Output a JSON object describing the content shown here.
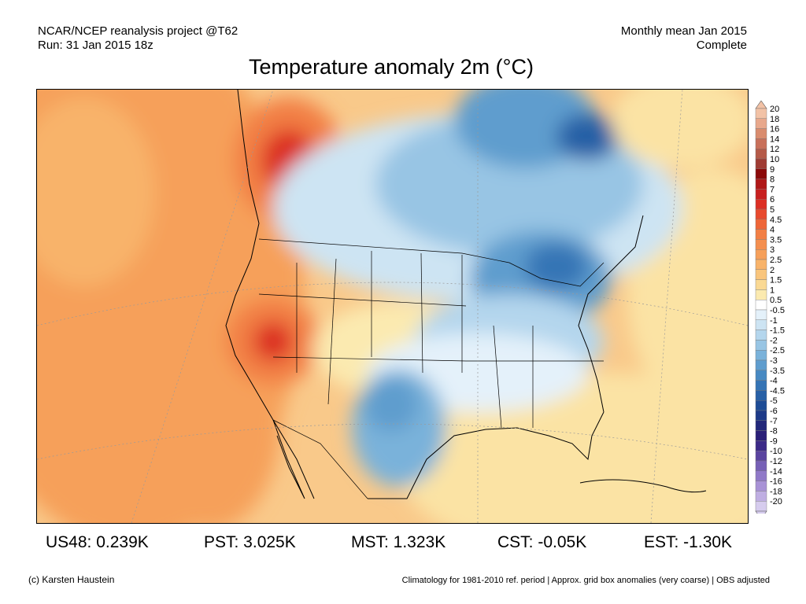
{
  "header": {
    "source_line1": "NCAR/NCEP reanalysis project @T62",
    "source_line2": "Run: 31 Jan 2015 18z",
    "period_line1": "Monthly mean Jan 2015",
    "period_line2": "Complete"
  },
  "title": "Temperature anomaly 2m (°C)",
  "colorbar": {
    "labels": [
      "20",
      "18",
      "16",
      "14",
      "12",
      "10",
      "9",
      "8",
      "7",
      "6",
      "5",
      "4.5",
      "4",
      "3.5",
      "3",
      "2.5",
      "2",
      "1.5",
      "1",
      "0.5",
      "-0.5",
      "-1",
      "-1.5",
      "-2",
      "-2.5",
      "-3",
      "-3.5",
      "-4",
      "-4.5",
      "-5",
      "-6",
      "-7",
      "-8",
      "-9",
      "-10",
      "-12",
      "-14",
      "-16",
      "-18",
      "-20"
    ],
    "colors": [
      "#f2c2a6",
      "#e8a88c",
      "#d98c6e",
      "#c8705a",
      "#b55a48",
      "#a03c34",
      "#8c0a0a",
      "#b01818",
      "#c82020",
      "#dc2f24",
      "#e84a2e",
      "#ee6638",
      "#f27f45",
      "#f48f4f",
      "#f6a05a",
      "#f8b36a",
      "#f9c57d",
      "#fad994",
      "#fbeab0",
      "#ffffff",
      "#e4f1fa",
      "#cde4f3",
      "#b4d6ed",
      "#98c5e4",
      "#7ab2da",
      "#5f9dce",
      "#4789c2",
      "#3574b5",
      "#2860a6",
      "#1e4c96",
      "#1d3a88",
      "#22287a",
      "#2a1f78",
      "#3c2a88",
      "#5a44a0",
      "#7660b6",
      "#9079c8",
      "#a892d6",
      "#bfaee2",
      "#d6ccee"
    ]
  },
  "stats": [
    {
      "label": "US48: 0.239K"
    },
    {
      "label": "PST: 3.025K"
    },
    {
      "label": "MST: 1.323K"
    },
    {
      "label": "CST: -0.05K"
    },
    {
      "label": "EST: -1.30K"
    }
  ],
  "footer": {
    "credit": "(c) Karsten Haustein",
    "note": "Climatology for 1981-2010 ref. period | Approx. grid box anomalies (very coarse) | OBS adjusted"
  }
}
